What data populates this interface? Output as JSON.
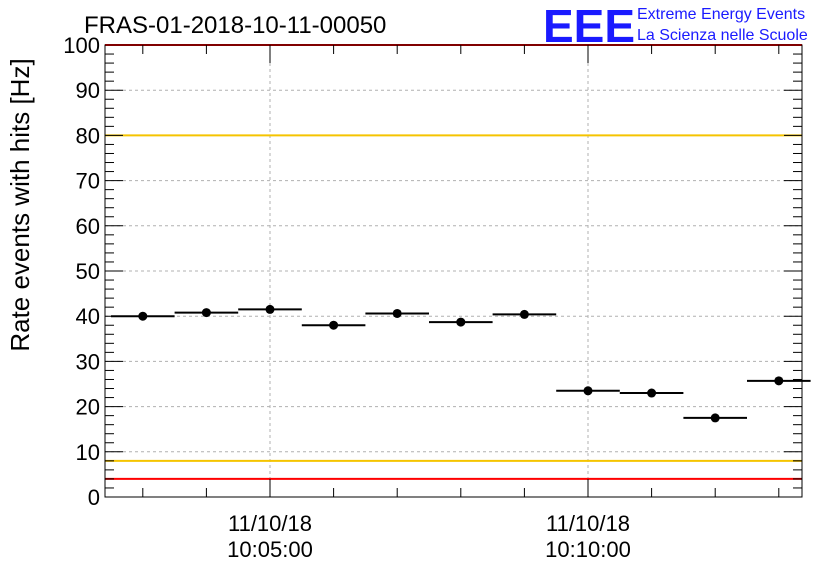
{
  "chart_data": {
    "type": "scatter",
    "title": "FRAS-01-2018-10-11-00050",
    "ylabel": "Rate events with hits [Hz]",
    "xlabel": "",
    "ylim": [
      0,
      100
    ],
    "y_ticks": [
      "0",
      "10",
      "20",
      "30",
      "40",
      "50",
      "60",
      "70",
      "80",
      "90",
      "100"
    ],
    "x_tick_labels": [
      {
        "date": "11/10/18",
        "time": "10:05:00"
      },
      {
        "date": "11/10/18",
        "time": "10:10:00"
      }
    ],
    "grid": true,
    "points": [
      {
        "x": "10:03:00",
        "y": 40.0
      },
      {
        "x": "10:04:00",
        "y": 40.8
      },
      {
        "x": "10:05:00",
        "y": 41.5
      },
      {
        "x": "10:06:00",
        "y": 38.0
      },
      {
        "x": "10:07:00",
        "y": 40.6
      },
      {
        "x": "10:08:00",
        "y": 38.7
      },
      {
        "x": "10:09:00",
        "y": 40.4
      },
      {
        "x": "10:10:00",
        "y": 23.5
      },
      {
        "x": "10:11:00",
        "y": 23.0
      },
      {
        "x": "10:12:00",
        "y": 17.5
      },
      {
        "x": "10:13:00",
        "y": 25.7
      }
    ],
    "reference_lines": [
      {
        "y": 100,
        "color": "#ff0000"
      },
      {
        "y": 80,
        "color": "#f5c400"
      },
      {
        "y": 8,
        "color": "#f5c400"
      },
      {
        "y": 4,
        "color": "#ff0000"
      }
    ]
  },
  "logo": {
    "mark": "EEE",
    "line1": "Extreme Energy Events",
    "line2": "La Scienza nelle Scuole",
    "color": "#1a1aff"
  }
}
